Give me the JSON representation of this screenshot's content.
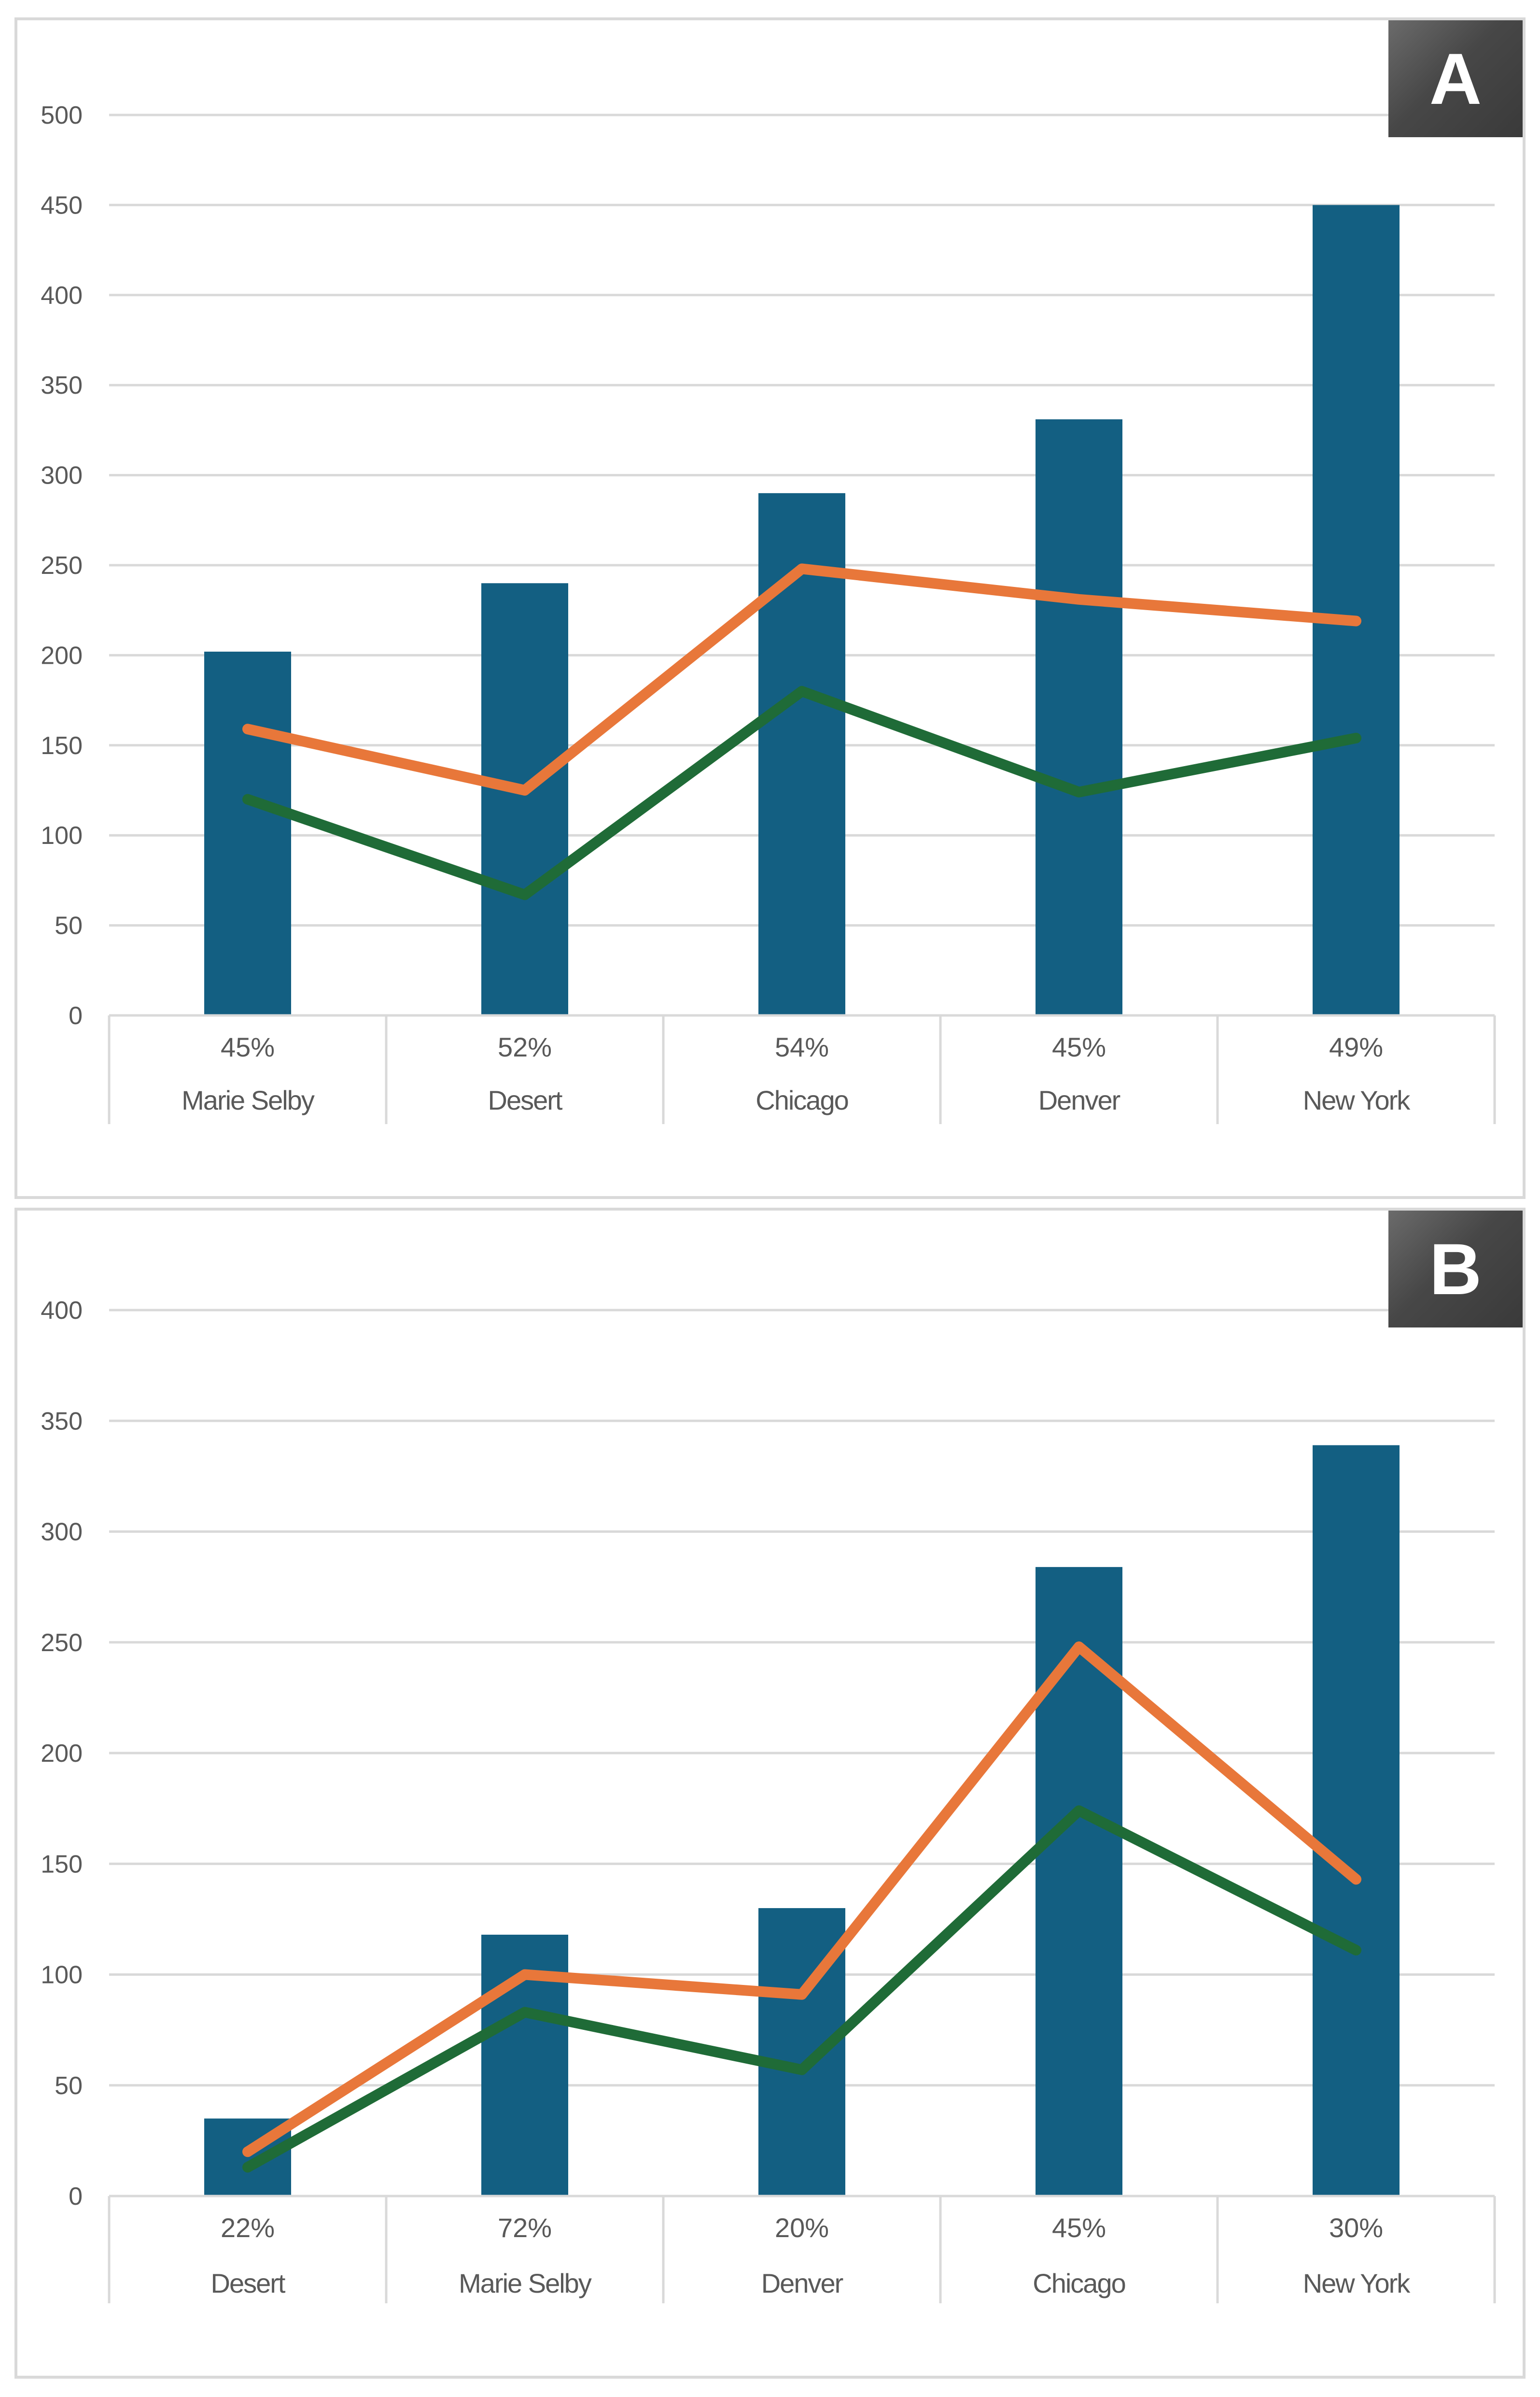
{
  "chart_data": [
    {
      "type": "bar",
      "panel_label": "A",
      "categories": [
        "Marie Selby",
        "Desert",
        "Chicago",
        "Denver",
        "New York"
      ],
      "percent_labels": [
        "45%",
        "52%",
        "54%",
        "45%",
        "49%"
      ],
      "ylim": [
        0,
        500
      ],
      "ytick_step": 50,
      "series": [
        {
          "name": "bars",
          "kind": "bar",
          "color": "#135f82",
          "values": [
            202,
            240,
            290,
            331,
            450
          ]
        },
        {
          "name": "orange line",
          "kind": "line",
          "color": "#e8773a",
          "values": [
            159,
            125,
            248,
            231,
            219
          ]
        },
        {
          "name": "green line",
          "kind": "line",
          "color": "#1f6b37",
          "values": [
            120,
            67,
            180,
            124,
            154
          ]
        }
      ],
      "grid": true,
      "title": "",
      "xlabel": "",
      "ylabel": ""
    },
    {
      "type": "bar",
      "panel_label": "B",
      "categories": [
        "Desert",
        "Marie Selby",
        "Denver",
        "Chicago",
        "New York"
      ],
      "percent_labels": [
        "22%",
        "72%",
        "20%",
        "45%",
        "30%"
      ],
      "ylim": [
        0,
        400
      ],
      "ytick_step": 50,
      "series": [
        {
          "name": "bars",
          "kind": "bar",
          "color": "#135f82",
          "values": [
            35,
            118,
            130,
            284,
            339
          ]
        },
        {
          "name": "orange line",
          "kind": "line",
          "color": "#e8773a",
          "values": [
            20,
            100,
            91,
            248,
            143
          ]
        },
        {
          "name": "green line",
          "kind": "line",
          "color": "#1f6b37",
          "values": [
            13,
            83,
            57,
            174,
            111
          ]
        }
      ],
      "grid": true,
      "title": "",
      "xlabel": "",
      "ylabel": ""
    }
  ]
}
